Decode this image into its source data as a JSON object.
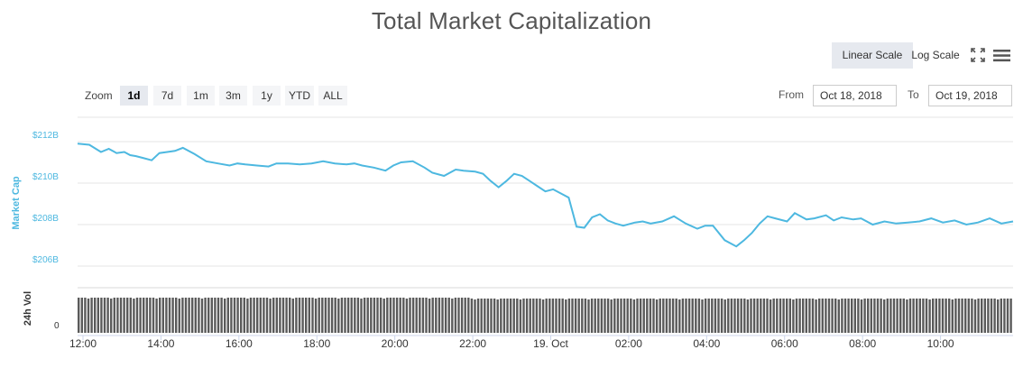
{
  "title": "Total Market Capitalization",
  "scale_buttons": {
    "linear": "Linear Scale",
    "log": "Log Scale",
    "active": "linear"
  },
  "icons": {
    "expand": "fullscreen-icon",
    "menu": "hamburger-menu-icon"
  },
  "zoom": {
    "label": "Zoom",
    "options": [
      "1d",
      "7d",
      "1m",
      "3m",
      "1y",
      "YTD",
      "ALL"
    ],
    "active": "1d"
  },
  "range": {
    "from_label": "From",
    "from_value": "Oct 18, 2018",
    "to_label": "To",
    "to_value": "Oct 19, 2018"
  },
  "colors": {
    "line": "#4db8e0",
    "volume": "#5a5a5a",
    "grid": "#e6e6e6",
    "axis_title_market": "#4db8e0",
    "axis_title_vol": "#333333"
  },
  "chart_data": [
    {
      "type": "line",
      "title": "Total Market Capitalization",
      "ylabel": "Market Cap",
      "xlabel": "",
      "ylim": [
        205,
        213
      ],
      "y_ticks": [
        "$206B",
        "$208B",
        "$210B",
        "$212B"
      ],
      "y_tick_values": [
        206,
        208,
        210,
        212
      ],
      "x_ticks": [
        "12:00",
        "14:00",
        "16:00",
        "18:00",
        "20:00",
        "22:00",
        "19. Oct",
        "02:00",
        "04:00",
        "06:00",
        "08:00",
        "10:00"
      ],
      "x_tick_hours": [
        0,
        2,
        4,
        6,
        8,
        10,
        12,
        14,
        16,
        18,
        20,
        22
      ],
      "x_range_hours": [
        0,
        24
      ],
      "series": [
        {
          "values_hours": [
            0,
            0.3,
            0.6,
            0.8,
            1.0,
            1.2,
            1.35,
            1.5,
            1.7,
            1.9,
            2.1,
            2.3,
            2.5,
            2.7,
            3.0,
            3.3,
            3.6,
            3.9,
            4.1,
            4.3,
            4.6,
            4.9,
            5.1,
            5.4,
            5.7,
            6.0,
            6.3,
            6.6,
            6.9,
            7.1,
            7.3,
            7.6,
            7.9,
            8.1,
            8.3,
            8.6,
            8.9,
            9.1,
            9.4,
            9.7,
            9.9,
            10.2,
            10.4,
            10.6,
            10.8,
            11.0,
            11.2,
            11.4,
            11.6,
            11.8,
            12.0,
            12.2,
            12.4,
            12.6,
            12.8,
            13.0,
            13.2,
            13.4,
            13.6,
            13.8,
            14.0,
            14.3,
            14.5,
            14.7,
            15.0,
            15.3,
            15.6,
            15.9,
            16.1,
            16.3,
            16.6,
            16.9,
            17.1,
            17.3,
            17.5,
            17.7,
            17.9,
            18.2,
            18.4,
            18.7,
            18.9,
            19.2,
            19.4,
            19.6,
            19.9,
            20.1,
            20.4,
            20.7,
            21.0,
            21.3,
            21.6,
            21.9,
            22.2,
            22.5,
            22.8,
            23.1,
            23.4,
            23.7,
            24.0
          ],
          "values": [
            211.9,
            211.85,
            211.5,
            211.65,
            211.45,
            211.5,
            211.35,
            211.3,
            211.2,
            211.1,
            211.45,
            211.5,
            211.55,
            211.7,
            211.4,
            211.05,
            210.95,
            210.85,
            210.95,
            210.9,
            210.85,
            210.8,
            210.95,
            210.95,
            210.9,
            210.95,
            211.05,
            210.95,
            210.9,
            210.95,
            210.85,
            210.75,
            210.6,
            210.85,
            211.0,
            211.05,
            210.75,
            210.5,
            210.35,
            210.65,
            210.6,
            210.55,
            210.45,
            210.1,
            209.8,
            210.1,
            210.45,
            210.35,
            210.1,
            209.85,
            209.6,
            209.7,
            209.5,
            209.3,
            207.9,
            207.85,
            208.35,
            208.5,
            208.2,
            208.05,
            207.95,
            208.1,
            208.15,
            208.05,
            208.15,
            208.4,
            208.05,
            207.8,
            207.95,
            207.95,
            207.25,
            206.95,
            207.25,
            207.6,
            208.05,
            208.4,
            208.3,
            208.15,
            208.55,
            208.25,
            208.3,
            208.45,
            208.2,
            208.35,
            208.25,
            208.3,
            208.0,
            208.15,
            208.05,
            208.1,
            208.15,
            208.3,
            208.1,
            208.2,
            208.0,
            208.1,
            208.3,
            208.05,
            208.15
          ]
        }
      ]
    },
    {
      "type": "bar",
      "ylabel": "24h Vol",
      "y_ticks": [
        "0"
      ],
      "note_values": "uniform daily volume bars across the 24h window"
    }
  ]
}
